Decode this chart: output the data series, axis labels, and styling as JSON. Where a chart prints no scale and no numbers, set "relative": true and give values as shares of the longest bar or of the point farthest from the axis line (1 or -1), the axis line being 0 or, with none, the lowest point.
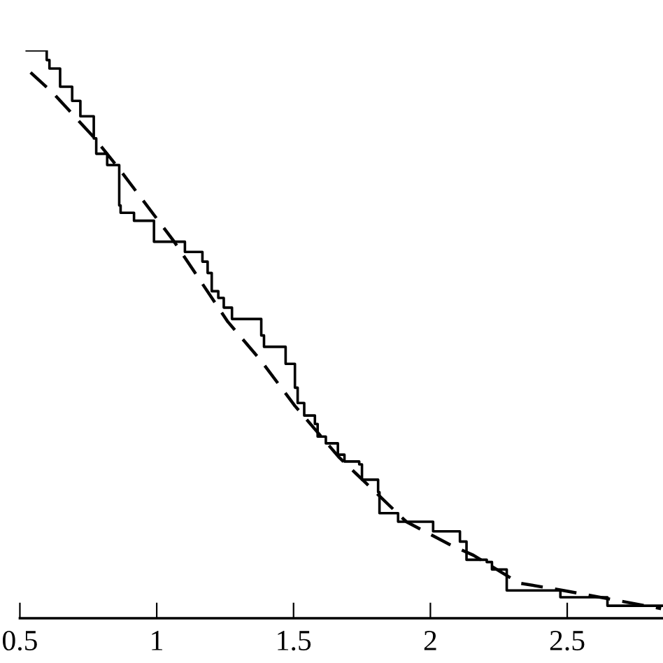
{
  "chart_data": {
    "type": "step",
    "relative": true,
    "xlim": [
      0.5,
      2.85
    ],
    "xticks": [
      0.5,
      1,
      1.5,
      2,
      2.5
    ],
    "grid": false,
    "legend": false,
    "series": [
      {
        "color": "#000000",
        "line_style": "solid",
        "x": [
          0.525,
          0.598,
          0.608,
          0.647,
          0.691,
          0.721,
          0.77,
          0.779,
          0.819,
          0.863,
          0.868,
          0.917,
          0.99,
          1.103,
          1.167,
          1.186,
          1.201,
          1.225,
          1.245,
          1.275,
          1.382,
          1.392,
          1.471,
          1.505,
          1.515,
          1.539,
          1.578,
          1.588,
          1.618,
          1.662,
          1.686,
          1.74,
          1.75,
          1.809,
          1.814,
          1.882,
          2.01,
          2.108,
          2.132,
          2.206,
          2.225,
          2.279,
          2.475,
          2.647,
          2.85
        ],
        "values": [
          1.0,
          0.983,
          0.968,
          0.936,
          0.911,
          0.884,
          0.845,
          0.818,
          0.798,
          0.727,
          0.714,
          0.7,
          0.663,
          0.645,
          0.628,
          0.608,
          0.576,
          0.564,
          0.547,
          0.527,
          0.498,
          0.478,
          0.448,
          0.406,
          0.379,
          0.357,
          0.342,
          0.32,
          0.308,
          0.288,
          0.276,
          0.271,
          0.244,
          0.222,
          0.185,
          0.17,
          0.153,
          0.135,
          0.103,
          0.099,
          0.086,
          0.049,
          0.037,
          0.022,
          0.022
        ]
      },
      {
        "type": "line",
        "color": "#000000",
        "line_style": "dashed",
        "x": [
          0.539,
          0.623,
          0.77,
          0.868,
          1.064,
          1.26,
          1.382,
          1.505,
          1.667,
          1.912,
          2.078,
          2.157,
          2.324,
          2.485,
          2.843
        ],
        "values": [
          0.961,
          0.924,
          0.847,
          0.788,
          0.663,
          0.522,
          0.453,
          0.374,
          0.283,
          0.17,
          0.128,
          0.111,
          0.062,
          0.049,
          0.017
        ]
      }
    ]
  }
}
